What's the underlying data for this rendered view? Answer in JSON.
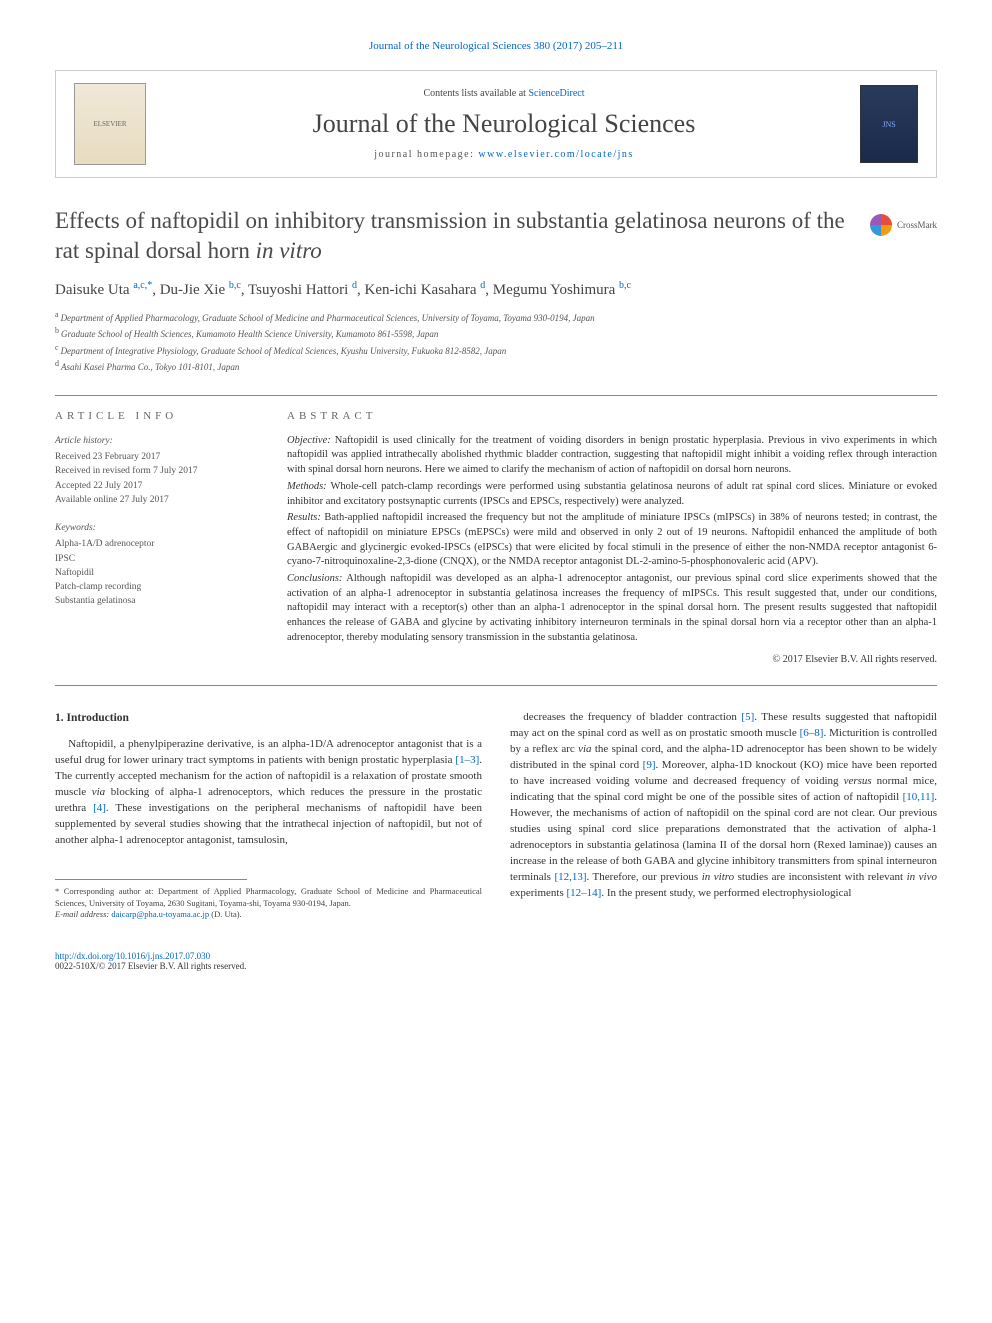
{
  "header": {
    "citation_link": "Journal of the Neurological Sciences 380 (2017) 205–211",
    "contents_prefix": "Contents lists available at ",
    "contents_link": "ScienceDirect",
    "journal_name": "Journal of the Neurological Sciences",
    "homepage_prefix": "journal homepage: ",
    "homepage_url": "www.elsevier.com/locate/jns",
    "elsevier_alt": "ELSEVIER",
    "cover_alt": "JNS"
  },
  "crossmark": {
    "label": "CrossMark"
  },
  "title": {
    "main": "Effects of naftopidil on inhibitory transmission in substantia gelatinosa neurons of the rat spinal dorsal horn ",
    "italic": "in vitro"
  },
  "authors_html": "Daisuke Uta <sup>a,c,*</sup>, Du-Jie Xie <sup>b,c</sup>, Tsuyoshi Hattori <sup>d</sup>, Ken-ichi Kasahara <sup>d</sup>, Megumu Yoshimura <sup>b,c</sup>",
  "authors": [
    {
      "name": "Daisuke Uta",
      "aff": "a,c,*"
    },
    {
      "name": "Du-Jie Xie",
      "aff": "b,c"
    },
    {
      "name": "Tsuyoshi Hattori",
      "aff": "d"
    },
    {
      "name": "Ken-ichi Kasahara",
      "aff": "d"
    },
    {
      "name": "Megumu Yoshimura",
      "aff": "b,c"
    }
  ],
  "affiliations": [
    {
      "key": "a",
      "text": "Department of Applied Pharmacology, Graduate School of Medicine and Pharmaceutical Sciences, University of Toyama, Toyama 930-0194, Japan"
    },
    {
      "key": "b",
      "text": "Graduate School of Health Sciences, Kumamoto Health Science University, Kumamoto 861-5598, Japan"
    },
    {
      "key": "c",
      "text": "Department of Integrative Physiology, Graduate School of Medical Sciences, Kyushu University, Fukuoka 812-8582, Japan"
    },
    {
      "key": "d",
      "text": "Asahi Kasei Pharma Co., Tokyo 101-8101, Japan"
    }
  ],
  "article_info": {
    "heading": "article info",
    "history_label": "Article history:",
    "history": [
      "Received 23 February 2017",
      "Received in revised form 7 July 2017",
      "Accepted 22 July 2017",
      "Available online 27 July 2017"
    ],
    "keywords_label": "Keywords:",
    "keywords": [
      "Alpha-1A/D adrenoceptor",
      "IPSC",
      "Naftopidil",
      "Patch-clamp recording",
      "Substantia gelatinosa"
    ]
  },
  "abstract": {
    "heading": "abstract",
    "objective_label": "Objective:",
    "objective": "Naftopidil is used clinically for the treatment of voiding disorders in benign prostatic hyperplasia. Previous in vivo experiments in which naftopidil was applied intrathecally abolished rhythmic bladder contraction, suggesting that naftopidil might inhibit a voiding reflex through interaction with spinal dorsal horn neurons. Here we aimed to clarify the mechanism of action of naftopidil on dorsal horn neurons.",
    "methods_label": "Methods:",
    "methods": "Whole-cell patch-clamp recordings were performed using substantia gelatinosa neurons of adult rat spinal cord slices. Miniature or evoked inhibitor and excitatory postsynaptic currents (IPSCs and EPSCs, respectively) were analyzed.",
    "results_label": "Results:",
    "results": "Bath-applied naftopidil increased the frequency but not the amplitude of miniature IPSCs (mIPSCs) in 38% of neurons tested; in contrast, the effect of naftopidil on miniature EPSCs (mEPSCs) were mild and observed in only 2 out of 19 neurons. Naftopidil enhanced the amplitude of both GABAergic and glycinergic evoked-IPSCs (eIPSCs) that were elicited by focal stimuli in the presence of either the non-NMDA receptor antagonist 6-cyano-7-nitroquinoxaline-2,3-dione (CNQX), or the NMDA receptor antagonist DL-2-amino-5-phosphonovaleric acid (APV).",
    "conclusions_label": "Conclusions:",
    "conclusions": "Although naftopidil was developed as an alpha-1 adrenoceptor antagonist, our previous spinal cord slice experiments showed that the activation of an alpha-1 adrenoceptor in substantia gelatinosa increases the frequency of mIPSCs. This result suggested that, under our conditions, naftopidil may interact with a receptor(s) other than an alpha-1 adrenoceptor in the spinal dorsal horn. The present results suggested that naftopidil enhances the release of GABA and glycine by activating inhibitory interneuron terminals in the spinal dorsal horn via a receptor other than an alpha-1 adrenoceptor, thereby modulating sensory transmission in the substantia gelatinosa.",
    "copyright": "© 2017 Elsevier B.V. All rights reserved."
  },
  "intro": {
    "heading": "1. Introduction",
    "col1": "Naftopidil, a phenylpiperazine derivative, is an alpha-1D/A adrenoceptor antagonist that is a useful drug for lower urinary tract symptoms in patients with benign prostatic hyperplasia [1–3]. The currently accepted mechanism for the action of naftopidil is a relaxation of prostate smooth muscle via blocking of alpha-1 adrenoceptors, which reduces the pressure in the prostatic urethra [4]. These investigations on the peripheral mechanisms of naftopidil have been supplemented by several studies showing that the intrathecal injection of naftopidil, but not of another alpha-1 adrenoceptor antagonist, tamsulosin,",
    "col2": "decreases the frequency of bladder contraction [5]. These results suggested that naftopidil may act on the spinal cord as well as on prostatic smooth muscle [6–8]. Micturition is controlled by a reflex arc via the spinal cord, and the alpha-1D adrenoceptor has been shown to be widely distributed in the spinal cord [9]. Moreover, alpha-1D knockout (KO) mice have been reported to have increased voiding volume and decreased frequency of voiding versus normal mice, indicating that the spinal cord might be one of the possible sites of action of naftopidil [10,11]. However, the mechanisms of action of naftopidil on the spinal cord are not clear. Our previous studies using spinal cord slice preparations demonstrated that the activation of alpha-1 adrenoceptors in substantia gelatinosa (lamina II of the dorsal horn (Rexed laminae)) causes an increase in the release of both GABA and glycine inhibitory transmitters from spinal interneuron terminals [12,13]. Therefore, our previous in vitro studies are inconsistent with relevant in vivo experiments [12–14]. In the present study, we performed electrophysiological"
  },
  "footnote": {
    "corr_label": "* Corresponding author at: Department of Applied Pharmacology, Graduate School of Medicine and Pharmaceutical Sciences, University of Toyama, 2630 Sugitani, Toyama-shi, Toyama 930-0194, Japan.",
    "email_label": "E-mail address: ",
    "email": "daicarp@pha.u-toyama.ac.jp",
    "email_suffix": " (D. Uta)."
  },
  "footer": {
    "doi": "http://dx.doi.org/10.1016/j.jns.2017.07.030",
    "issn": "0022-510X/© 2017 Elsevier B.V. All rights reserved."
  },
  "colors": {
    "link": "#0066cc",
    "text": "#333333",
    "heading": "#4a4a4a",
    "border": "#cccccc",
    "rule": "#888888",
    "background": "#ffffff"
  },
  "typography": {
    "body_font": "Times New Roman, Georgia, serif",
    "title_fontsize": 23,
    "journal_fontsize": 26,
    "author_fontsize": 15,
    "abstract_fontsize": 10.5,
    "body_fontsize": 11,
    "affiliation_fontsize": 9,
    "footnote_fontsize": 8.5
  },
  "refs": {
    "r1_3": "[1–3]",
    "r4": "[4]",
    "r5": "[5]",
    "r6_8": "[6–8]",
    "r9": "[9]",
    "r10_11": "[10,11]",
    "r12_13": "[12,13]",
    "r12_14": "[12–14]"
  }
}
